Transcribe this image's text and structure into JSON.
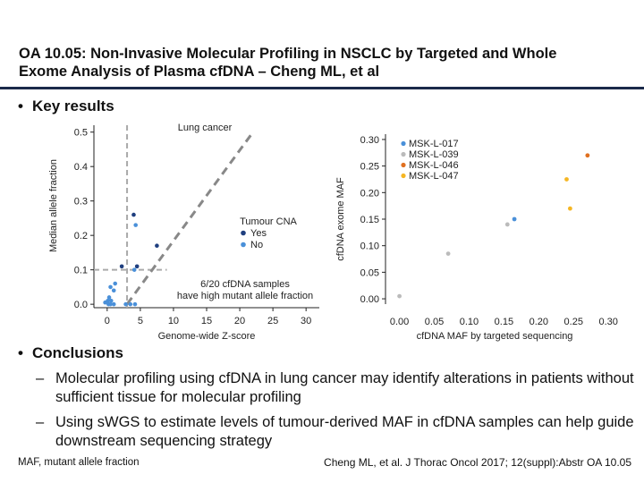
{
  "header": {
    "title_line1": "OA 10.05: Non-Invasive Molecular Profiling in NSCLC by Targeted and Whole",
    "title_line2": "Exome Analysis of Plasma cfDNA – Cheng ML, et al"
  },
  "sections": {
    "key_results": "Key results",
    "conclusions": "Conclusions",
    "bullet_glyph": "•",
    "dash_glyph": "–"
  },
  "conclusions_items": [
    "Molecular profiling using cfDNA in lung cancer may identify alterations in patients without sufficient tissue for molecular profiling",
    "Using sWGS to estimate levels of tumour-derived MAF in cfDNA samples can help guide downstream sequencing strategy"
  ],
  "footer": {
    "left": "MAF, mutant allele fraction",
    "right": "Cheng ML, et al. J Thorac Oncol 2017; 12(suppl):Abstr OA 10.05"
  },
  "colors": {
    "dark_blue": "#1f3f7f",
    "light_blue": "#4a90d9",
    "grey": "#bbbbbb",
    "orange": "#e07020",
    "gold": "#f5b623",
    "dashed": "#999999"
  },
  "chart_data": [
    {
      "type": "scatter",
      "title": "Lung cancer",
      "xlabel": "Genome-wide Z-score",
      "ylabel": "Median allele fraction",
      "xlim": [
        -2,
        32
      ],
      "ylim": [
        -0.01,
        0.52
      ],
      "xticks": [
        0,
        5,
        10,
        15,
        20,
        25,
        30
      ],
      "yticks": [
        0.0,
        0.1,
        0.2,
        0.3,
        0.4,
        0.5
      ],
      "ytick_labels": [
        "0.0",
        "0.1",
        "0.2",
        "0.3",
        "0.4",
        "0.5"
      ],
      "reference_lines": {
        "vertical_x": 3,
        "horizontal_y": 0.1,
        "diagonal": [
          [
            3,
            0.0
          ],
          [
            22,
            0.5
          ]
        ]
      },
      "legend_title": "Tumour CNA",
      "annotation": "6/20 cfDNA samples have high mutant allele fraction",
      "series": [
        {
          "name": "Yes",
          "color": "#1f3f7f",
          "points": [
            [
              4.0,
              0.26
            ],
            [
              4.5,
              0.11
            ],
            [
              2.2,
              0.11
            ],
            [
              7.5,
              0.17
            ]
          ]
        },
        {
          "name": "No",
          "color": "#4a90d9",
          "points": [
            [
              4.3,
              0.23
            ],
            [
              4.1,
              0.1
            ],
            [
              0.5,
              0.05
            ],
            [
              1.0,
              0.04
            ],
            [
              0.3,
              0.02
            ],
            [
              0.6,
              0.01
            ],
            [
              -0.3,
              0.005
            ],
            [
              0.2,
              0.0
            ],
            [
              0.5,
              0.0
            ],
            [
              1.0,
              0.0
            ],
            [
              2.8,
              0.0
            ],
            [
              3.5,
              0.0
            ],
            [
              4.2,
              0.0
            ],
            [
              0.1,
              0.01
            ],
            [
              1.2,
              0.06
            ]
          ]
        }
      ]
    },
    {
      "type": "scatter",
      "xlabel": "cfDNA MAF by targeted sequencing",
      "ylabel": "cfDNA exome MAF",
      "xlim": [
        -0.02,
        0.31
      ],
      "ylim": [
        -0.01,
        0.31
      ],
      "xticks": [
        0.0,
        0.05,
        0.1,
        0.15,
        0.2,
        0.25,
        0.3
      ],
      "xtick_labels": [
        "0.00",
        "0.05",
        "0.10",
        "0.15",
        "0.20",
        "0.25",
        "0.30"
      ],
      "yticks": [
        0.0,
        0.05,
        0.1,
        0.15,
        0.2,
        0.25,
        0.3
      ],
      "ytick_labels": [
        "0.00",
        "0.05",
        "0.10",
        "0.15",
        "0.20",
        "0.25",
        "0.30"
      ],
      "series": [
        {
          "name": "MSK-L-017",
          "color": "#4a90d9",
          "points": [
            [
              0.165,
              0.15
            ]
          ]
        },
        {
          "name": "MSK-L-039",
          "color": "#bbbbbb",
          "points": [
            [
              0.0,
              0.005
            ],
            [
              0.07,
              0.085
            ],
            [
              0.155,
              0.14
            ]
          ]
        },
        {
          "name": "MSK-L-046",
          "color": "#e07020",
          "points": [
            [
              0.27,
              0.27
            ]
          ]
        },
        {
          "name": "MSK-L-047",
          "color": "#f5b623",
          "points": [
            [
              0.24,
              0.225
            ],
            [
              0.245,
              0.17
            ]
          ]
        }
      ]
    }
  ]
}
